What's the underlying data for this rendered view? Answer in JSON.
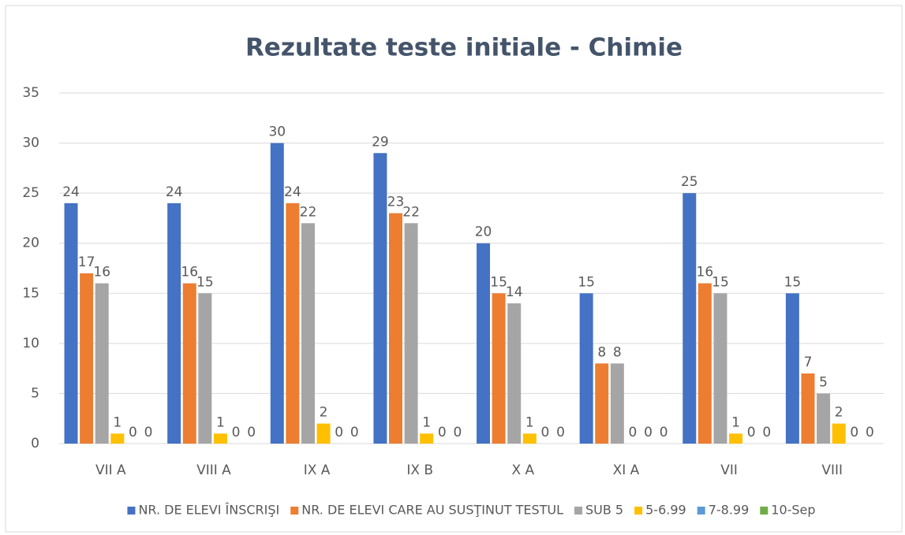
{
  "chart_data": {
    "type": "bar",
    "title": "Rezultate teste initiale - Chimie",
    "categories": [
      "VII A",
      "VIII A",
      "IX A",
      "IX B",
      "X A",
      "XI A",
      "VII",
      "VIII"
    ],
    "series": [
      {
        "name": "NR. DE ELEVI ÎNSCRIŞI",
        "color": "#4472c4",
        "values": [
          24,
          24,
          30,
          29,
          20,
          15,
          25,
          15
        ]
      },
      {
        "name": "NR. DE ELEVI CARE AU SUSŢINUT TESTUL",
        "color": "#ed7d31",
        "values": [
          17,
          16,
          24,
          23,
          15,
          8,
          16,
          7
        ]
      },
      {
        "name": "SUB 5",
        "color": "#a5a5a5",
        "values": [
          16,
          15,
          22,
          22,
          14,
          8,
          15,
          5
        ]
      },
      {
        "name": "5-6.99",
        "color": "#ffc000",
        "values": [
          1,
          1,
          2,
          1,
          1,
          0,
          1,
          2
        ]
      },
      {
        "name": "7-8.99",
        "color": "#5b9bd5",
        "values": [
          0,
          0,
          0,
          0,
          0,
          0,
          0,
          0
        ]
      },
      {
        "name": "10-Sep",
        "color": "#70ad47",
        "values": [
          0,
          0,
          0,
          0,
          0,
          0,
          0,
          0
        ]
      }
    ],
    "ylim": [
      0,
      35
    ],
    "yticks": [
      0,
      5,
      10,
      15,
      20,
      25,
      30,
      35
    ],
    "grid": true,
    "legend": "bottom",
    "data_labels": true
  }
}
